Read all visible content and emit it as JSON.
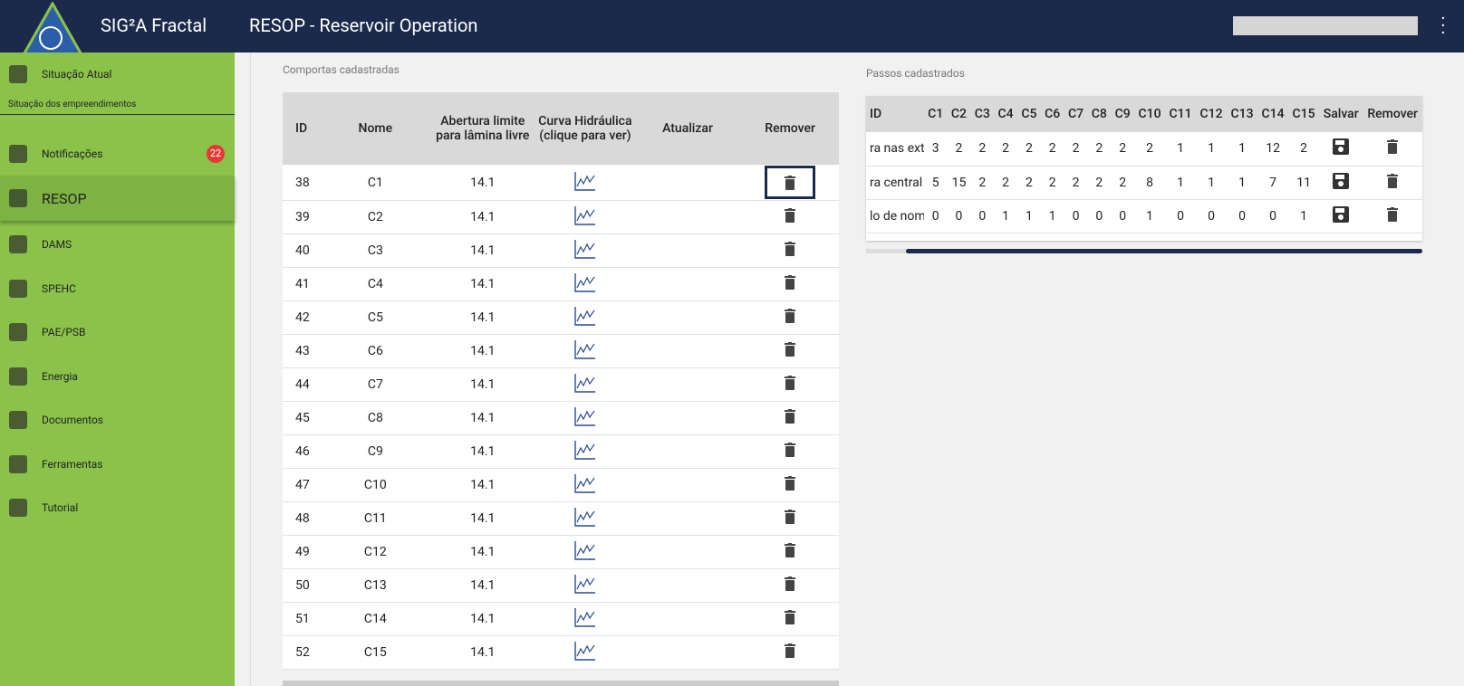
{
  "header": {
    "app_title": "SIG²A Fractal",
    "page_title": "RESOP - Reservoir Operation"
  },
  "sidebar": {
    "top_item": "Situação Atual",
    "section_label": "Situação dos empreendimentos",
    "items": [
      "Notificações",
      "RESOP",
      "DAMS",
      "SPEHC",
      "PAE/PSB",
      "Energia",
      "Documentos",
      "Ferramentas",
      "Tutorial"
    ],
    "active_item": 1,
    "badge": 22
  },
  "gates": {
    "caption": "Comportas cadastradas",
    "columns": [
      "ID",
      "Nome",
      "Abertura limite para lâmina livre",
      "Curva Hidráulica (clique para ver)",
      "Atualizar",
      "Remover"
    ],
    "rows": [
      [
        38,
        "C1",
        14.1
      ],
      [
        39,
        "C2",
        14.1
      ],
      [
        40,
        "C3",
        14.1
      ],
      [
        41,
        "C4",
        14.1
      ],
      [
        42,
        "C5",
        14.1
      ],
      [
        43,
        "C6",
        14.1
      ],
      [
        44,
        "C7",
        14.1
      ],
      [
        45,
        "C8",
        14.1
      ],
      [
        46,
        "C9",
        14.1
      ],
      [
        47,
        "C10",
        14.1
      ],
      [
        48,
        "C11",
        14.1
      ],
      [
        49,
        "C12",
        14.1
      ],
      [
        50,
        "C13",
        14.1
      ],
      [
        51,
        "C14",
        14.1
      ],
      [
        52,
        "C15",
        14.1
      ]
    ]
  },
  "steps": {
    "caption": "Passos cadastrados",
    "columns": [
      "ID",
      "C1",
      "C2",
      "C3",
      "C4",
      "C5",
      "C6",
      "C7",
      "C8",
      "C9",
      "C10",
      "C11",
      "C12",
      "C13",
      "C14",
      "C15",
      "Salvar",
      "Remover"
    ],
    "rows": [
      {
        "id": "ra nas ext",
        "values": [
          3,
          2,
          2,
          2,
          2,
          2,
          2,
          2,
          2,
          2,
          1,
          1,
          1,
          12,
          2
        ]
      },
      {
        "id": "ra central",
        "values": [
          5,
          15,
          2,
          2,
          2,
          2,
          2,
          2,
          2,
          8,
          1,
          1,
          1,
          7,
          11
        ]
      },
      {
        "id": "lo de nom",
        "values": [
          0,
          0,
          0,
          1,
          1,
          1,
          0,
          0,
          0,
          1,
          0,
          0,
          0,
          0,
          1
        ]
      }
    ]
  }
}
